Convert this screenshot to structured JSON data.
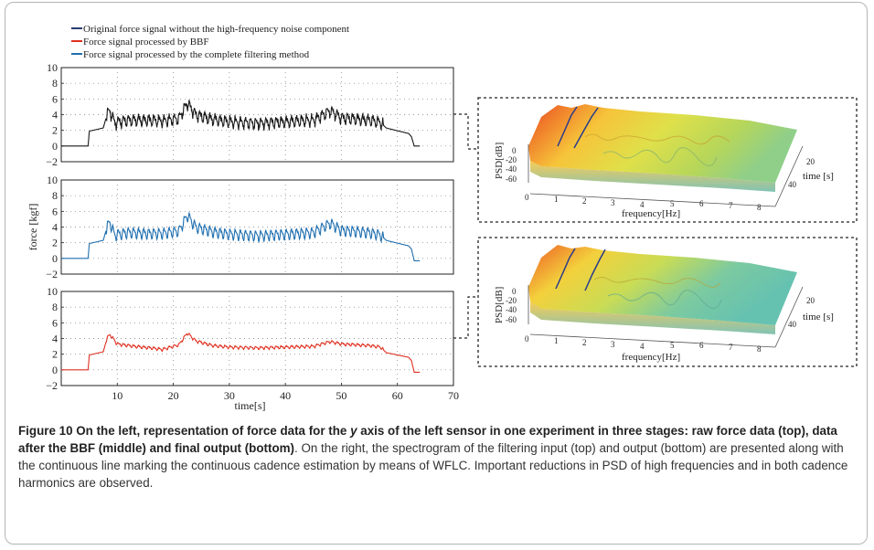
{
  "legend": [
    {
      "label": "Original force signal without the high-frequency noise component",
      "color": "#2a3b73"
    },
    {
      "label": "Force signal processed by BBF",
      "color": "#e03020"
    },
    {
      "label": "Force signal processed by the complete filtering method",
      "color": "#1f6fb0"
    }
  ],
  "chart_data": [
    {
      "type": "line",
      "panel": "top",
      "title": "",
      "xlabel": "",
      "ylabel": "",
      "xlim": [
        0,
        70
      ],
      "ylim": [
        -2,
        10
      ],
      "yticks": [
        "10",
        "8",
        "6",
        "4",
        "2",
        "0",
        "−2"
      ],
      "grid": "dotted",
      "color": "#1a1a1a",
      "series": [
        {
          "points": [
            [
              0,
              0
            ],
            [
              4.8,
              0
            ],
            [
              5,
              1.9
            ],
            [
              7.5,
              2.3
            ],
            [
              8.2,
              4.1
            ],
            [
              8.7,
              4.5
            ],
            [
              9.5,
              3
            ],
            [
              12,
              3.3
            ],
            [
              15,
              3.3
            ],
            [
              18,
              3.2
            ],
            [
              21,
              3.5
            ],
            [
              22.5,
              5.5
            ],
            [
              24,
              4
            ],
            [
              27,
              3.4
            ],
            [
              30,
              3.1
            ],
            [
              35,
              2.9
            ],
            [
              40,
              3.1
            ],
            [
              45,
              3.3
            ],
            [
              48,
              4.5
            ],
            [
              50,
              3.6
            ],
            [
              55,
              3.3
            ],
            [
              57,
              3
            ],
            [
              58,
              2.3
            ],
            [
              62,
              1.6
            ],
            [
              62.5,
              1.2
            ],
            [
              63,
              0
            ],
            [
              64,
              0
            ]
          ]
        }
      ]
    },
    {
      "type": "line",
      "panel": "middle",
      "title": "",
      "xlabel": "",
      "ylabel": "force [kgf]",
      "xlim": [
        0,
        70
      ],
      "ylim": [
        -2,
        10
      ],
      "yticks": [
        "10",
        "8",
        "6",
        "4",
        "2",
        "0",
        "−2"
      ],
      "grid": "dotted",
      "color": "#1f6fb0",
      "series": [
        {
          "points": [
            [
              0,
              0
            ],
            [
              4.8,
              0
            ],
            [
              5,
              1.9
            ],
            [
              7.5,
              2.3
            ],
            [
              8.2,
              4.1
            ],
            [
              8.7,
              4.6
            ],
            [
              9.5,
              3
            ],
            [
              12,
              3.3
            ],
            [
              15,
              3.2
            ],
            [
              18,
              3.2
            ],
            [
              21,
              3.5
            ],
            [
              22.5,
              5.5
            ],
            [
              24,
              4
            ],
            [
              27,
              3.4
            ],
            [
              30,
              3.1
            ],
            [
              35,
              2.9
            ],
            [
              40,
              3.1
            ],
            [
              45,
              3.3
            ],
            [
              48,
              4.5
            ],
            [
              50,
              3.6
            ],
            [
              55,
              3.3
            ],
            [
              57,
              3
            ],
            [
              58,
              2.3
            ],
            [
              62,
              1.6
            ],
            [
              62.5,
              1.2
            ],
            [
              63,
              -0.3
            ],
            [
              64,
              -0.3
            ]
          ]
        }
      ]
    },
    {
      "type": "line",
      "panel": "bottom",
      "title": "",
      "xlabel": "time[s]",
      "ylabel": "",
      "xlim": [
        0,
        70
      ],
      "ylim": [
        -2,
        10
      ],
      "xticks": [
        "10",
        "20",
        "30",
        "40",
        "50",
        "60",
        "70"
      ],
      "yticks": [
        "10",
        "8",
        "6",
        "4",
        "2",
        "0",
        "−2"
      ],
      "grid": "dotted",
      "color": "#e03020",
      "series": [
        {
          "points": [
            [
              0,
              0
            ],
            [
              4.8,
              0
            ],
            [
              5,
              1.9
            ],
            [
              7.5,
              2.3
            ],
            [
              8.2,
              4.1
            ],
            [
              8.7,
              4.5
            ],
            [
              10,
              3.3
            ],
            [
              13,
              3
            ],
            [
              16,
              2.8
            ],
            [
              18,
              2.6
            ],
            [
              21,
              3.2
            ],
            [
              22.5,
              4.7
            ],
            [
              24,
              3.7
            ],
            [
              27,
              3.1
            ],
            [
              30,
              2.9
            ],
            [
              35,
              2.8
            ],
            [
              40,
              2.9
            ],
            [
              45,
              3
            ],
            [
              48,
              3.6
            ],
            [
              50,
              3.3
            ],
            [
              55,
              3.1
            ],
            [
              57,
              2.9
            ],
            [
              58,
              2.2
            ],
            [
              62,
              1.6
            ],
            [
              62.5,
              1.2
            ],
            [
              63,
              -0.3
            ],
            [
              64,
              -0.3
            ]
          ]
        }
      ]
    }
  ],
  "spectrograms": [
    {
      "panel": "top",
      "zlabel": "PSD[dB]",
      "xlabel": "frequency[Hz]",
      "ylabel": "time [s]",
      "zticks": [
        "0",
        "-20",
        "-40",
        "-60"
      ],
      "xticks": [
        "0",
        "1",
        "2",
        "3",
        "4",
        "5",
        "6",
        "7",
        "8"
      ],
      "yticks": [
        "20",
        "40"
      ]
    },
    {
      "panel": "bottom",
      "zlabel": "PSD[dB]",
      "xlabel": "frequency[Hz]",
      "ylabel": "time [s]",
      "zticks": [
        "0",
        "-20",
        "-40",
        "-60"
      ],
      "xticks": [
        "0",
        "1",
        "2",
        "3",
        "4",
        "5",
        "6",
        "7",
        "8"
      ],
      "yticks": [
        "20",
        "40"
      ]
    }
  ],
  "caption": {
    "bold_part1": "Figure 10 On the left, representation of force data for the ",
    "bold_italic": "y",
    "bold_part2": " axis of the left sensor in one experiment in three stages: raw force data (top), data after the BBF (middle) and final output (bottom)",
    "rest": ". On the right, the spectrogram of the filtering input (top) and output (bottom) are presented along with the continuous line marking the continuous cadence estimation by means of WFLC. Important reductions in PSD of high frequencies and in both cadence harmonics are observed."
  }
}
